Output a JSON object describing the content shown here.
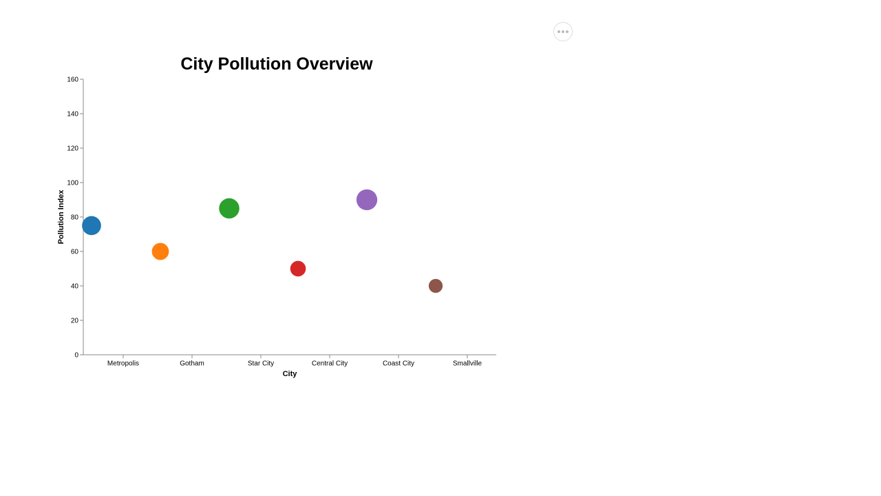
{
  "chart_data": {
    "type": "scatter",
    "title": "City Pollution Overview",
    "xlabel": "City",
    "ylabel": "Pollution Index",
    "categories": [
      "Metropolis",
      "Gotham",
      "Star City",
      "Central City",
      "Coast City",
      "Smallville"
    ],
    "values": [
      75,
      60,
      85,
      50,
      90,
      40
    ],
    "colors": [
      "#1f77b4",
      "#ff7f0e",
      "#2ca02c",
      "#d62728",
      "#9467bd",
      "#8c564b"
    ],
    "ylim": [
      0,
      160
    ],
    "yticks": [
      0,
      20,
      40,
      60,
      80,
      100,
      120,
      140,
      160
    ],
    "grid": false,
    "legend": "none"
  },
  "toolbar": {
    "actions_icon": "more-horizontal-icon"
  }
}
